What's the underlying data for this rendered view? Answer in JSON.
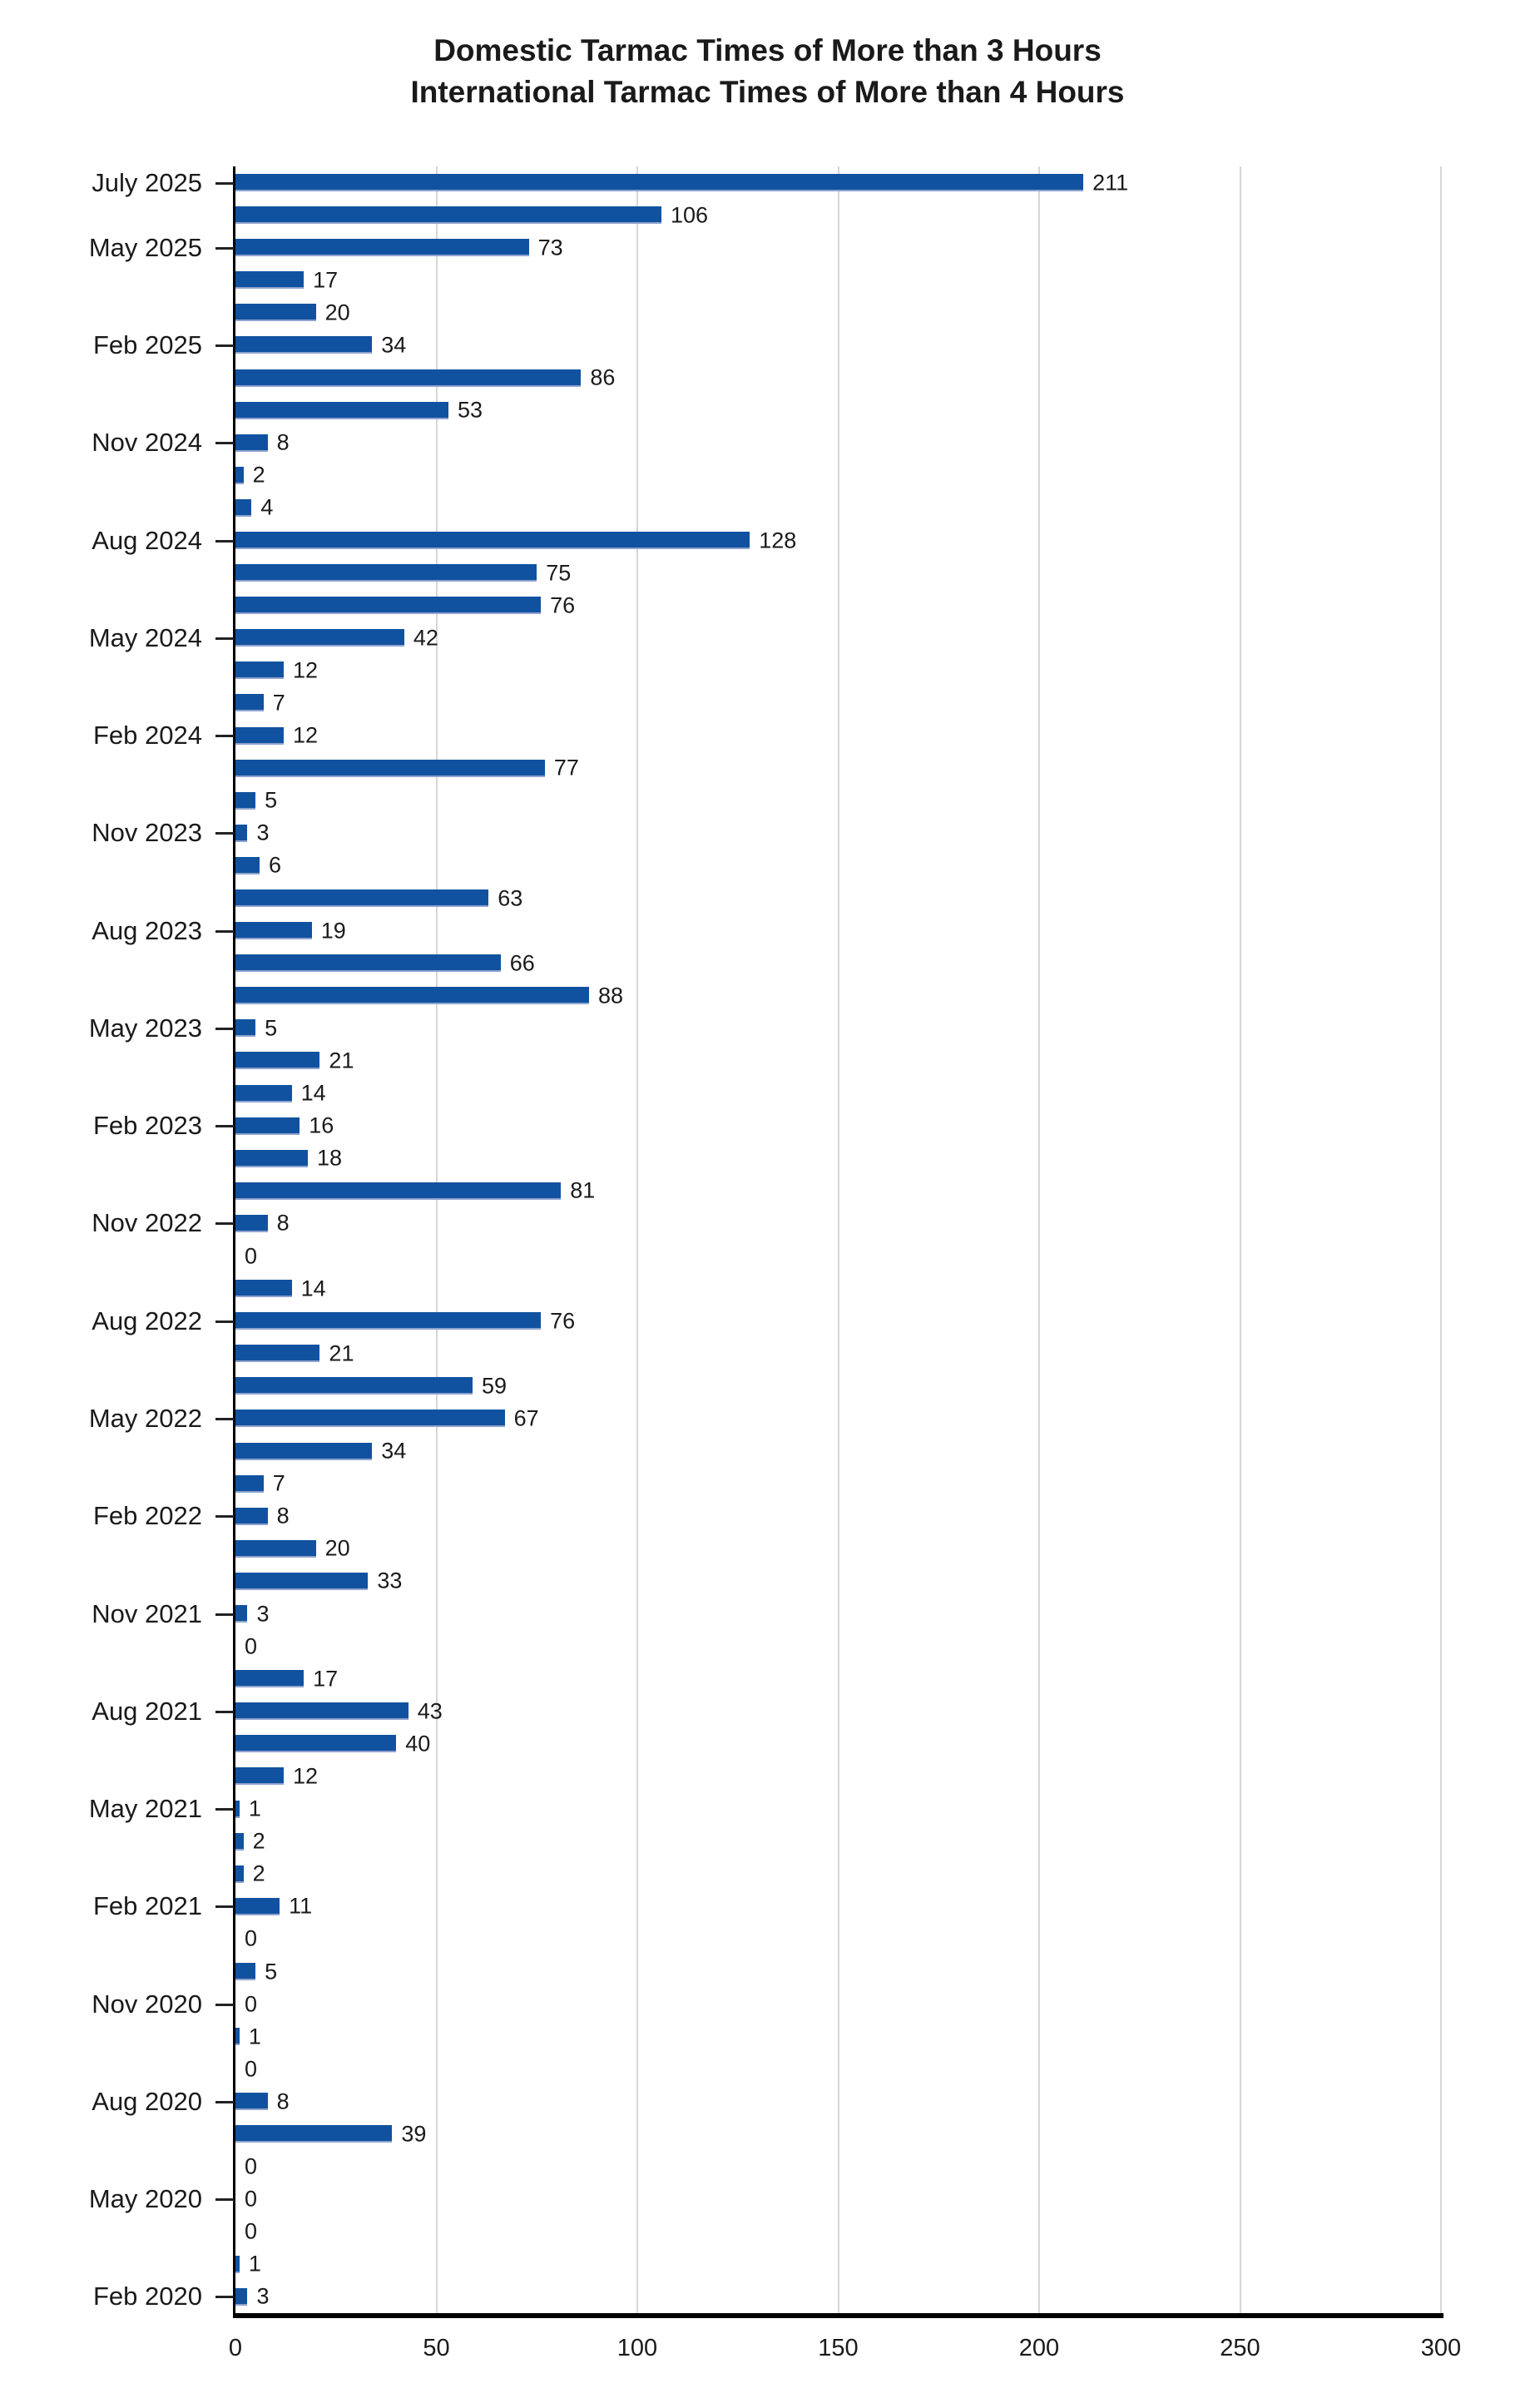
{
  "title": {
    "line1": "Domestic Tarmac Times of More than 3 Hours",
    "line2": "International Tarmac Times of More than 4 Hours"
  },
  "chart_data": {
    "type": "bar",
    "orientation": "horizontal",
    "title": "Domestic Tarmac Times of More than 3 Hours\nInternational Tarmac Times of More than 4 Hours",
    "xlim": [
      0,
      300
    ],
    "x_ticks": [
      0,
      50,
      100,
      150,
      200,
      250,
      300
    ],
    "grid": "vertical",
    "value_labels_shown": true,
    "bar_color": "#1152a0",
    "bar_edge_color": "#8fa2ce",
    "gridline_color": "#d6d6d6",
    "axis_color": "#000000",
    "y_axis_tick_labels": [
      "July 2025",
      "May 2025",
      "Feb 2025",
      "Nov 2024",
      "Aug 2024",
      "May 2024",
      "Feb 2024",
      "Nov 2023",
      "Aug 2023",
      "May 2023",
      "Feb 2023",
      "Nov 2022",
      "Aug 2022",
      "May 2022",
      "Feb 2022",
      "Nov 2021",
      "Aug 2021",
      "May 2021",
      "Feb 2021",
      "Nov 2020",
      "Aug 2020",
      "May 2020",
      "Feb 2020"
    ],
    "bars": [
      {
        "label": "July 2025",
        "value": 211
      },
      {
        "label": "",
        "value": 106
      },
      {
        "label": "May 2025",
        "value": 73
      },
      {
        "label": "",
        "value": 17
      },
      {
        "label": "",
        "value": 20
      },
      {
        "label": "Feb 2025",
        "value": 34
      },
      {
        "label": "",
        "value": 86
      },
      {
        "label": "",
        "value": 53
      },
      {
        "label": "Nov 2024",
        "value": 8
      },
      {
        "label": "",
        "value": 2
      },
      {
        "label": "",
        "value": 4
      },
      {
        "label": "Aug 2024",
        "value": 128
      },
      {
        "label": "",
        "value": 75
      },
      {
        "label": "",
        "value": 76
      },
      {
        "label": "May 2024",
        "value": 42
      },
      {
        "label": "",
        "value": 12
      },
      {
        "label": "",
        "value": 7
      },
      {
        "label": "Feb 2024",
        "value": 12
      },
      {
        "label": "",
        "value": 77
      },
      {
        "label": "",
        "value": 5
      },
      {
        "label": "Nov 2023",
        "value": 3
      },
      {
        "label": "",
        "value": 6
      },
      {
        "label": "",
        "value": 63
      },
      {
        "label": "Aug 2023",
        "value": 19
      },
      {
        "label": "",
        "value": 66
      },
      {
        "label": "",
        "value": 88
      },
      {
        "label": "May 2023",
        "value": 5
      },
      {
        "label": "",
        "value": 21
      },
      {
        "label": "",
        "value": 14
      },
      {
        "label": "Feb 2023",
        "value": 16
      },
      {
        "label": "",
        "value": 18
      },
      {
        "label": "",
        "value": 81
      },
      {
        "label": "Nov 2022",
        "value": 8
      },
      {
        "label": "",
        "value": 0
      },
      {
        "label": "",
        "value": 14
      },
      {
        "label": "Aug 2022",
        "value": 76
      },
      {
        "label": "",
        "value": 21
      },
      {
        "label": "",
        "value": 59
      },
      {
        "label": "May 2022",
        "value": 67
      },
      {
        "label": "",
        "value": 34
      },
      {
        "label": "",
        "value": 7
      },
      {
        "label": "Feb 2022",
        "value": 8
      },
      {
        "label": "",
        "value": 20
      },
      {
        "label": "",
        "value": 33
      },
      {
        "label": "Nov 2021",
        "value": 3
      },
      {
        "label": "",
        "value": 0
      },
      {
        "label": "",
        "value": 17
      },
      {
        "label": "Aug 2021",
        "value": 43
      },
      {
        "label": "",
        "value": 40
      },
      {
        "label": "",
        "value": 12
      },
      {
        "label": "May 2021",
        "value": 1
      },
      {
        "label": "",
        "value": 2
      },
      {
        "label": "",
        "value": 2
      },
      {
        "label": "Feb 2021",
        "value": 11
      },
      {
        "label": "",
        "value": 0
      },
      {
        "label": "",
        "value": 5
      },
      {
        "label": "Nov 2020",
        "value": 0
      },
      {
        "label": "",
        "value": 1
      },
      {
        "label": "",
        "value": 0
      },
      {
        "label": "Aug 2020",
        "value": 8
      },
      {
        "label": "",
        "value": 39
      },
      {
        "label": "",
        "value": 0
      },
      {
        "label": "May 2020",
        "value": 0
      },
      {
        "label": "",
        "value": 0
      },
      {
        "label": "",
        "value": 1
      },
      {
        "label": "Feb 2020",
        "value": 3
      }
    ]
  }
}
